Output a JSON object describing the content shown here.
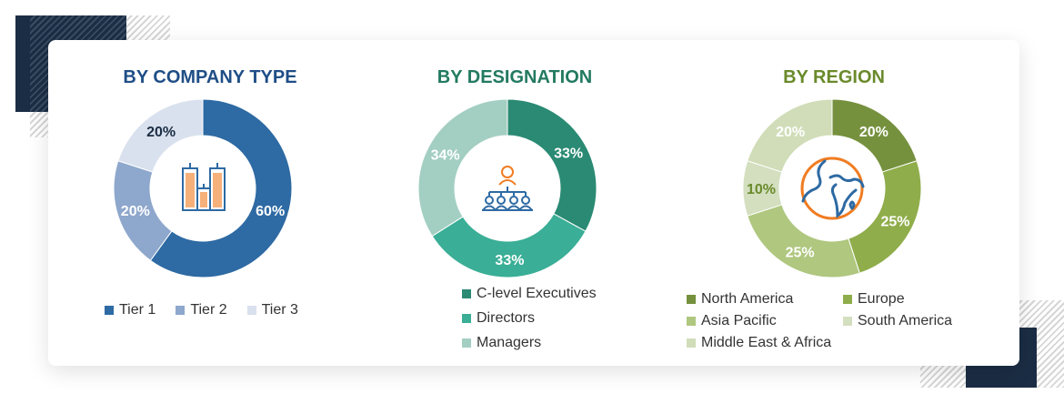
{
  "chart_data": [
    {
      "type": "pie",
      "title": "BY COMPANY TYPE",
      "title_color": "#1f4e86",
      "icon": "buildings-icon",
      "categories": [
        "Tier 1",
        "Tier 2",
        "Tier 3"
      ],
      "values": [
        60,
        20,
        20
      ],
      "labels": [
        "60%",
        "20%",
        "20%"
      ],
      "colors": [
        "#2e6aa3",
        "#8ea7cc",
        "#d9e1ee"
      ],
      "label_colors": [
        "#ffffff",
        "#ffffff",
        "#1b2d44"
      ],
      "legend": "bottom"
    },
    {
      "type": "pie",
      "title": "BY DESIGNATION",
      "title_color": "#237a61",
      "icon": "hierarchy-people-icon",
      "categories": [
        "C-level Executives",
        "Directors",
        "Managers"
      ],
      "values": [
        33,
        33,
        34
      ],
      "labels": [
        "33%",
        "33%",
        "34%"
      ],
      "colors": [
        "#2a8a73",
        "#3aae96",
        "#a3cfc2"
      ],
      "label_colors": [
        "#ffffff",
        "#ffffff",
        "#ffffff"
      ],
      "legend": "bottom"
    },
    {
      "type": "pie",
      "title": "BY REGION",
      "title_color": "#6a8a2b",
      "icon": "globe-icon",
      "categories": [
        "North America",
        "Europe",
        "Asia Pacific",
        "South America",
        "Middle East & Africa"
      ],
      "values": [
        20,
        25,
        25,
        10,
        20
      ],
      "labels": [
        "20%",
        "25%",
        "25%",
        "10%",
        "20%"
      ],
      "colors": [
        "#76913e",
        "#8fad4a",
        "#afc77f",
        "#d3dfbf",
        "#d0ddb8"
      ],
      "label_colors": [
        "#ffffff",
        "#ffffff",
        "#ffffff",
        "#6a8a2b",
        "#ffffff"
      ],
      "legend": "bottom"
    }
  ]
}
